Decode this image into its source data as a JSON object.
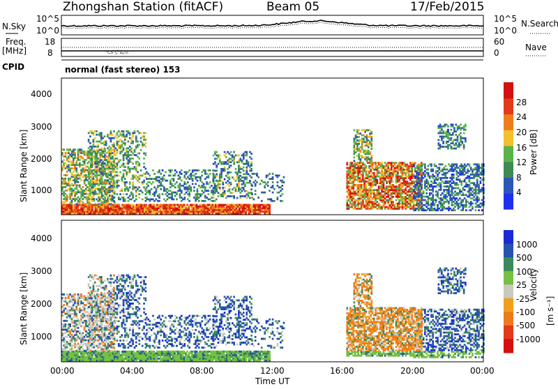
{
  "header": {
    "station": "Zhongshan Station (fitACF)",
    "beam": "Beam 05",
    "date": "17/Feb/2015"
  },
  "noise_panel": {
    "left_label": "N.Sky",
    "left_ticks": [
      "10^5",
      "10^0"
    ],
    "right_ticks": [
      "10^5",
      "10^0"
    ],
    "right_label": "N.Search"
  },
  "freq_panel": {
    "left_label_1": "Freq.",
    "left_label_2": "[MHz]",
    "left_ticks": [
      "18",
      "8"
    ],
    "right_ticks": [
      "60",
      "0"
    ],
    "right_label": "Nave"
  },
  "cpid": {
    "label": "CPID",
    "mode": "normal (fast stereo) 153"
  },
  "colors": {
    "power": [
      "#1f2ff0",
      "#2c56b8",
      "#3e8a55",
      "#59b34a",
      "#f2c02a",
      "#ef7d1b",
      "#e23a1a",
      "#d41010"
    ],
    "velocity": [
      "#1b2ad6",
      "#2652b0",
      "#3b8a5a",
      "#76c043",
      "#c9c9c0",
      "#f0a020",
      "#ee7a1b",
      "#e23a1a",
      "#d41010"
    ]
  },
  "chart_data": [
    {
      "type": "heatmap",
      "name": "power",
      "ylabel": "Slant Range [km]",
      "yticks": [
        "4000",
        "3000",
        "2000",
        "1000"
      ],
      "ylim": [
        180,
        4600
      ],
      "xlim": [
        "00:00",
        "24:00"
      ],
      "colorbar_label": "Power [dB]",
      "colorbar_ticks": [
        "28",
        "24",
        "20",
        "16",
        "12",
        "8",
        "4"
      ],
      "color_range": [
        0,
        30
      ]
    },
    {
      "type": "heatmap",
      "name": "velocity",
      "ylabel": "Slant Range [km]",
      "yticks": [
        "4000",
        "3000",
        "2000",
        "1000"
      ],
      "ylim": [
        180,
        4600
      ],
      "xlim": [
        "00:00",
        "24:00"
      ],
      "xticks": [
        "00:00",
        "04:00",
        "08:00",
        "12:00",
        "16:00",
        "20:00",
        "00:00"
      ],
      "xlabel": "Time UT",
      "colorbar_label": "Velocity",
      "colorbar_unit": "[m s⁻¹]",
      "colorbar_ticks": [
        "1000",
        "500",
        "100",
        "25",
        "-25",
        "-100",
        "-500",
        "-1000"
      ]
    }
  ]
}
